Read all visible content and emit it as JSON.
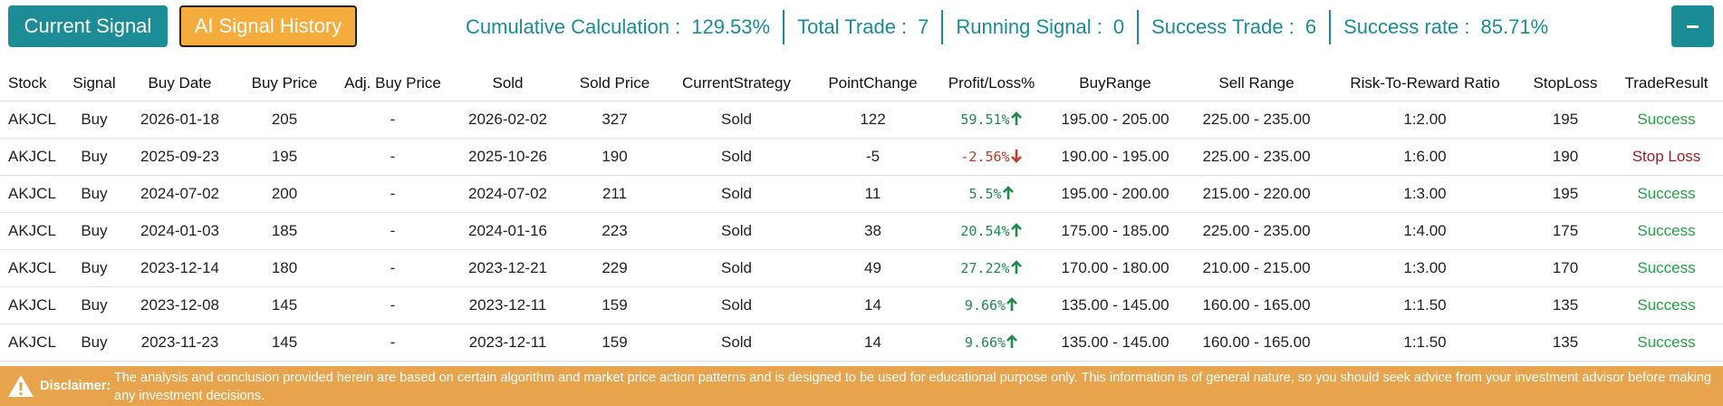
{
  "buttons": [
    "Current Signal",
    "AI Signal History"
  ],
  "stats": [
    {
      "label": "Cumulative Calculation :",
      "value": "129.53%"
    },
    {
      "label": "Total Trade :",
      "value": "7"
    },
    {
      "label": "Running Signal :",
      "value": "0"
    },
    {
      "label": "Success Trade :",
      "value": "6"
    },
    {
      "label": "Success rate :",
      "value": "85.71%"
    }
  ],
  "table": {
    "headers": [
      "Stock",
      "Signal",
      "Buy Date",
      "Buy Price",
      "Adj. Buy Price",
      "Sold",
      "Sold Price",
      "CurrentStrategy",
      "PointChange",
      "Profit/Loss%",
      "BuyRange",
      "Sell Range",
      "Risk-To-Reward Ratio",
      "StopLoss",
      "TradeResult"
    ],
    "rows": [
      [
        "AKJCL",
        "Buy",
        "2026-01-18",
        "205",
        "-",
        "2026-02-02",
        "327",
        "Sold",
        "122",
        "59.51%",
        "195.00 - 205.00",
        "225.00 - 235.00",
        "1:2.00",
        "195",
        "Success"
      ],
      [
        "AKJCL",
        "Buy",
        "2025-09-23",
        "195",
        "-",
        "2025-10-26",
        "190",
        "Sold",
        "-5",
        "-2.56%",
        "190.00 - 195.00",
        "225.00 - 235.00",
        "1:6.00",
        "190",
        "Stop Loss"
      ],
      [
        "AKJCL",
        "Buy",
        "2024-07-02",
        "200",
        "-",
        "2024-07-02",
        "211",
        "Sold",
        "11",
        "5.5%",
        "195.00 - 200.00",
        "215.00 - 220.00",
        "1:3.00",
        "195",
        "Success"
      ],
      [
        "AKJCL",
        "Buy",
        "2024-01-03",
        "185",
        "-",
        "2024-01-16",
        "223",
        "Sold",
        "38",
        "20.54%",
        "175.00 - 185.00",
        "225.00 - 235.00",
        "1:4.00",
        "175",
        "Success"
      ],
      [
        "AKJCL",
        "Buy",
        "2023-12-14",
        "180",
        "-",
        "2023-12-21",
        "229",
        "Sold",
        "49",
        "27.22%",
        "170.00 - 180.00",
        "210.00 - 215.00",
        "1:3.00",
        "170",
        "Success"
      ],
      [
        "AKJCL",
        "Buy",
        "2023-12-08",
        "145",
        "-",
        "2023-12-11",
        "159",
        "Sold",
        "14",
        "9.66%",
        "135.00 - 145.00",
        "160.00 - 165.00",
        "1:1.50",
        "135",
        "Success"
      ],
      [
        "AKJCL",
        "Buy",
        "2023-11-23",
        "145",
        "-",
        "2023-12-11",
        "159",
        "Sold",
        "14",
        "9.66%",
        "135.00 - 145.00",
        "160.00 - 165.00",
        "1:1.50",
        "135",
        "Success"
      ]
    ]
  },
  "disclaimer": {
    "label": "Disclaimer:",
    "text": "The analysis and conclusion provided herein are based on certain algorithm and market price action patterns and is designed to be used for educational purpose only. This information is of general nature, so you should seek advice from your investment advisor before making any investment decisions."
  }
}
